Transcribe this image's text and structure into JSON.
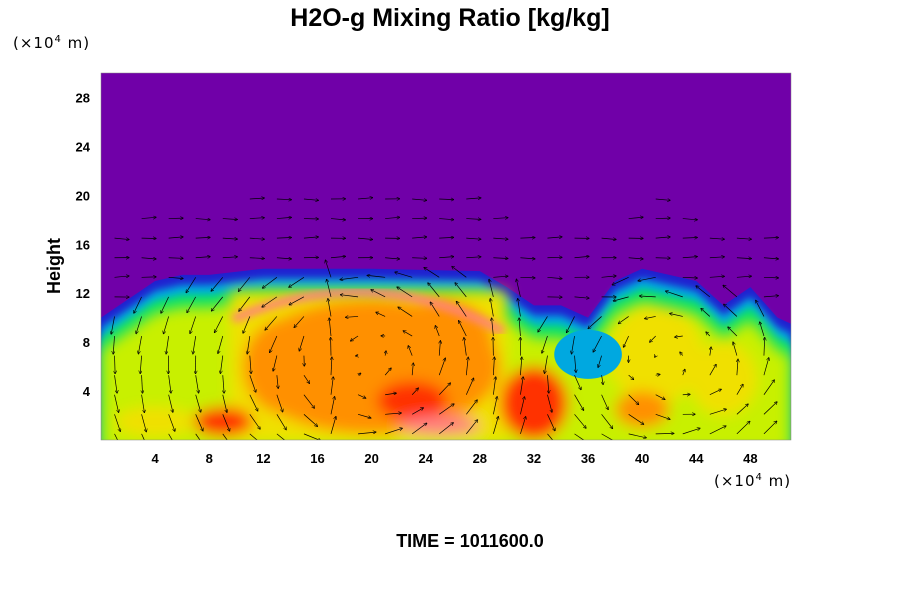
{
  "chart_data": {
    "type": "heatmap",
    "title": "H2O-g Mixing Ratio [kg/kg]",
    "ylabel": "Height",
    "xlabel": "",
    "x_unit": {
      "prefix": "(×10",
      "exp": "4",
      "suffix": " m)"
    },
    "y_unit": {
      "prefix": "(×10",
      "exp": "4",
      "suffix": " m)"
    },
    "xlim": [
      0,
      51
    ],
    "ylim": [
      0,
      30
    ],
    "x_ticks": [
      4,
      8,
      12,
      16,
      20,
      24,
      28,
      32,
      36,
      40,
      44,
      48
    ],
    "y_ticks": [
      4,
      8,
      12,
      16,
      20,
      24,
      28
    ],
    "background_color": "#7000a8",
    "colormap": [
      "#7000a8",
      "#2020d0",
      "#00a8e0",
      "#00e070",
      "#c8f000",
      "#f0e000",
      "#ff9000",
      "#ff3000",
      "#ff8080",
      "#f8b8c0"
    ],
    "overlay": "velocity vectors",
    "moisture_top_height": [
      [
        0,
        10
      ],
      [
        2,
        11.5
      ],
      [
        4,
        13
      ],
      [
        6,
        13.5
      ],
      [
        8,
        13.5
      ],
      [
        12,
        14
      ],
      [
        20,
        14
      ],
      [
        28,
        13.8
      ],
      [
        30,
        12.5
      ],
      [
        32,
        11
      ],
      [
        34,
        11
      ],
      [
        36,
        10
      ],
      [
        38,
        13
      ],
      [
        40,
        14
      ],
      [
        44,
        13
      ],
      [
        46,
        11
      ],
      [
        48,
        12.5
      ],
      [
        50,
        10
      ],
      [
        51,
        9.5
      ]
    ]
  },
  "footer": {
    "time_label": "TIME = 1011600.0"
  }
}
